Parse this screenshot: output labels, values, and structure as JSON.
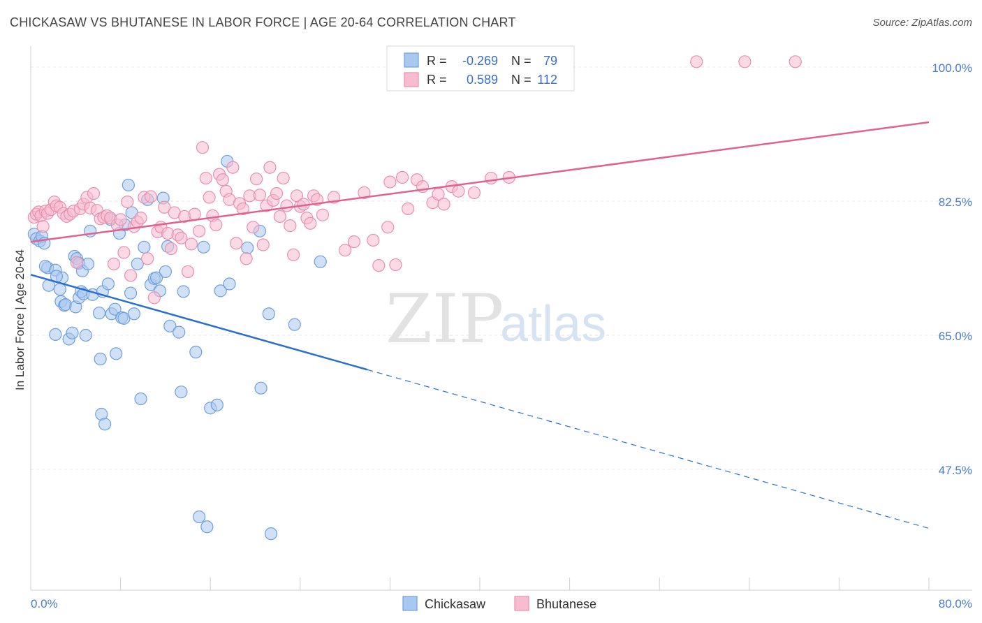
{
  "title": "CHICKASAW VS BHUTANESE IN LABOR FORCE | AGE 20-64 CORRELATION CHART",
  "source": "Source: ZipAtlas.com",
  "watermark": {
    "zip": "ZIP",
    "atlas": "atlas"
  },
  "colors": {
    "chickasaw_fill": "#a9c8f0",
    "chickasaw_stroke": "#6f9fdc",
    "chickasaw_line": "#2a6fd0",
    "bhutanese_fill": "#f7bcd0",
    "bhutanese_stroke": "#ea8fad",
    "bhutanese_line": "#e0638f",
    "grid": "#e3e3e3"
  },
  "stats": {
    "row1": {
      "r_label": "R =",
      "r_value": "-0.269",
      "n_label": "N =",
      "n_value": "79"
    },
    "row2": {
      "r_label": "R =",
      "r_value": "0.589",
      "n_label": "N =",
      "n_value": "112"
    }
  },
  "legend": {
    "chickasaw": "Chickasaw",
    "bhutanese": "Bhutanese"
  },
  "chart_data": {
    "type": "scatter",
    "title": "CHICKASAW VS BHUTANESE IN LABOR FORCE | AGE 20-64 CORRELATION CHART",
    "xlabel": "",
    "ylabel": "In Labor Force | Age 20-64",
    "xlim": [
      0,
      80
    ],
    "ylim": [
      30,
      100
    ],
    "y_ticks": [
      {
        "value": 100,
        "label": "100.0%"
      },
      {
        "value": 82.5,
        "label": "82.5%"
      },
      {
        "value": 65,
        "label": "65.0%"
      },
      {
        "value": 47.5,
        "label": "47.5%"
      }
    ],
    "x_ticks": [
      {
        "value": 0,
        "label": "0.0%"
      },
      {
        "value": 80,
        "label": "80.0%"
      }
    ],
    "legend_position": "bottom-center",
    "grid": true,
    "series": [
      {
        "name": "Chickasaw",
        "points": [
          [
            0.3,
            78.2
          ],
          [
            0.5,
            77.6
          ],
          [
            0.8,
            77.3
          ],
          [
            1.0,
            77.9
          ],
          [
            1.2,
            77.0
          ],
          [
            1.5,
            73.8
          ],
          [
            1.3,
            74.0
          ],
          [
            1.6,
            71.5
          ],
          [
            2.2,
            73.5
          ],
          [
            2.8,
            72.5
          ],
          [
            2.3,
            72.7
          ],
          [
            2.6,
            71.0
          ],
          [
            2.7,
            69.4
          ],
          [
            3.0,
            68.9
          ],
          [
            3.1,
            69.0
          ],
          [
            2.2,
            65.1
          ],
          [
            3.4,
            64.5
          ],
          [
            3.7,
            65.3
          ],
          [
            4.0,
            68.7
          ],
          [
            4.3,
            69.9
          ],
          [
            3.9,
            75.3
          ],
          [
            4.1,
            75.0
          ],
          [
            4.3,
            74.4
          ],
          [
            4.6,
            73.4
          ],
          [
            4.9,
            65.0
          ],
          [
            4.5,
            70.7
          ],
          [
            4.7,
            70.4
          ],
          [
            5.1,
            74.3
          ],
          [
            5.3,
            78.6
          ],
          [
            5.5,
            70.3
          ],
          [
            6.1,
            67.9
          ],
          [
            6.4,
            70.7
          ],
          [
            6.2,
            61.9
          ],
          [
            6.9,
            71.7
          ],
          [
            7.1,
            80.1
          ],
          [
            7.2,
            67.8
          ],
          [
            7.5,
            68.4
          ],
          [
            7.6,
            62.6
          ],
          [
            7.9,
            78.3
          ],
          [
            8.1,
            67.3
          ],
          [
            8.3,
            67.2
          ],
          [
            8.4,
            79.4
          ],
          [
            8.7,
            84.6
          ],
          [
            8.9,
            70.5
          ],
          [
            9.0,
            81.0
          ],
          [
            9.2,
            67.8
          ],
          [
            9.5,
            74.3
          ],
          [
            9.8,
            56.7
          ],
          [
            10.1,
            76.5
          ],
          [
            10.4,
            82.7
          ],
          [
            10.7,
            71.6
          ],
          [
            11.0,
            72.4
          ],
          [
            11.2,
            72.5
          ],
          [
            11.5,
            70.8
          ],
          [
            11.8,
            82.9
          ],
          [
            12.0,
            73.3
          ],
          [
            12.2,
            76.6
          ],
          [
            12.4,
            66.2
          ],
          [
            13.2,
            65.4
          ],
          [
            13.4,
            57.6
          ],
          [
            13.6,
            70.7
          ],
          [
            14.7,
            62.8
          ],
          [
            15.4,
            76.5
          ],
          [
            15.0,
            41.3
          ],
          [
            15.7,
            40.0
          ],
          [
            16.0,
            55.5
          ],
          [
            16.6,
            55.9
          ],
          [
            16.9,
            70.8
          ],
          [
            17.5,
            87.7
          ],
          [
            17.7,
            71.7
          ],
          [
            19.3,
            76.4
          ],
          [
            20.5,
            58.1
          ],
          [
            20.4,
            78.6
          ],
          [
            21.2,
            67.8
          ],
          [
            21.4,
            39.1
          ],
          [
            23.5,
            66.4
          ],
          [
            25.8,
            74.6
          ],
          [
            6.3,
            54.7
          ],
          [
            6.6,
            53.4
          ]
        ]
      },
      {
        "name": "Bhutanese",
        "points": [
          [
            0.3,
            80.4
          ],
          [
            0.5,
            80.8
          ],
          [
            0.7,
            81.1
          ],
          [
            0.9,
            80.6
          ],
          [
            1.1,
            79.2
          ],
          [
            1.3,
            81.2
          ],
          [
            1.5,
            80.9
          ],
          [
            1.8,
            81.4
          ],
          [
            2.1,
            82.4
          ],
          [
            2.3,
            81.9
          ],
          [
            2.6,
            81.7
          ],
          [
            2.9,
            80.9
          ],
          [
            3.2,
            80.5
          ],
          [
            3.5,
            80.8
          ],
          [
            3.8,
            81.2
          ],
          [
            4.1,
            74.5
          ],
          [
            4.4,
            81.5
          ],
          [
            4.7,
            82.1
          ],
          [
            5.0,
            83.0
          ],
          [
            5.3,
            81.6
          ],
          [
            5.6,
            83.5
          ],
          [
            5.9,
            81.3
          ],
          [
            6.2,
            80.2
          ],
          [
            6.5,
            80.4
          ],
          [
            6.8,
            80.6
          ],
          [
            7.1,
            80.3
          ],
          [
            7.4,
            74.3
          ],
          [
            7.7,
            79.4
          ],
          [
            8.0,
            80.1
          ],
          [
            8.3,
            75.8
          ],
          [
            8.6,
            82.4
          ],
          [
            8.9,
            72.8
          ],
          [
            9.2,
            79.2
          ],
          [
            9.5,
            79.8
          ],
          [
            9.8,
            80.3
          ],
          [
            10.1,
            83.0
          ],
          [
            10.4,
            75.0
          ],
          [
            10.7,
            83.1
          ],
          [
            11.0,
            69.9
          ],
          [
            11.3,
            78.5
          ],
          [
            11.6,
            79.1
          ],
          [
            11.9,
            81.7
          ],
          [
            12.2,
            78.3
          ],
          [
            12.5,
            76.3
          ],
          [
            12.8,
            81.0
          ],
          [
            13.1,
            78.1
          ],
          [
            13.4,
            77.7
          ],
          [
            13.7,
            80.5
          ],
          [
            14.0,
            73.3
          ],
          [
            14.3,
            76.9
          ],
          [
            14.6,
            80.8
          ],
          [
            15.0,
            78.6
          ],
          [
            15.3,
            89.5
          ],
          [
            15.6,
            85.5
          ],
          [
            15.9,
            83.0
          ],
          [
            16.2,
            80.6
          ],
          [
            16.5,
            79.4
          ],
          [
            16.8,
            86.0
          ],
          [
            17.1,
            85.3
          ],
          [
            17.4,
            83.8
          ],
          [
            17.7,
            82.7
          ],
          [
            18.0,
            86.9
          ],
          [
            18.3,
            77.0
          ],
          [
            18.6,
            82.2
          ],
          [
            18.9,
            81.5
          ],
          [
            19.2,
            75.0
          ],
          [
            19.5,
            83.2
          ],
          [
            19.8,
            79.1
          ],
          [
            20.1,
            85.4
          ],
          [
            20.4,
            83.3
          ],
          [
            20.7,
            76.8
          ],
          [
            21.0,
            81.9
          ],
          [
            21.3,
            86.9
          ],
          [
            21.6,
            82.6
          ],
          [
            21.9,
            83.5
          ],
          [
            22.2,
            80.5
          ],
          [
            22.5,
            85.5
          ],
          [
            22.8,
            81.9
          ],
          [
            23.1,
            79.3
          ],
          [
            23.4,
            75.5
          ],
          [
            23.7,
            83.2
          ],
          [
            24.0,
            81.8
          ],
          [
            24.3,
            82.1
          ],
          [
            24.6,
            80.3
          ],
          [
            24.9,
            79.6
          ],
          [
            25.2,
            83.2
          ],
          [
            25.5,
            82.7
          ],
          [
            26.0,
            80.7
          ],
          [
            27.0,
            83.0
          ],
          [
            28.0,
            76.1
          ],
          [
            28.8,
            77.2
          ],
          [
            29.7,
            83.6
          ],
          [
            30.5,
            77.4
          ],
          [
            31.0,
            74.1
          ],
          [
            31.8,
            79.1
          ],
          [
            32.0,
            85.0
          ],
          [
            32.5,
            74.2
          ],
          [
            33.1,
            85.6
          ],
          [
            33.6,
            81.5
          ],
          [
            34.4,
            85.3
          ],
          [
            34.9,
            84.4
          ],
          [
            35.8,
            82.3
          ],
          [
            36.3,
            83.4
          ],
          [
            36.8,
            82.1
          ],
          [
            37.5,
            84.4
          ],
          [
            38.1,
            83.8
          ],
          [
            39.5,
            83.6
          ],
          [
            41.0,
            85.5
          ],
          [
            42.6,
            85.6
          ],
          [
            59.3,
            100.7
          ],
          [
            63.6,
            100.7
          ],
          [
            68.1,
            100.7
          ]
        ]
      }
    ],
    "trendlines": [
      {
        "series": "Chickasaw",
        "solid": [
          [
            0,
            72.9
          ],
          [
            30,
            60.5
          ]
        ],
        "dashed": [
          [
            30,
            60.5
          ],
          [
            80,
            39.8
          ]
        ]
      },
      {
        "series": "Bhutanese",
        "solid": [
          [
            0,
            77.2
          ],
          [
            80,
            92.8
          ]
        ]
      }
    ]
  }
}
